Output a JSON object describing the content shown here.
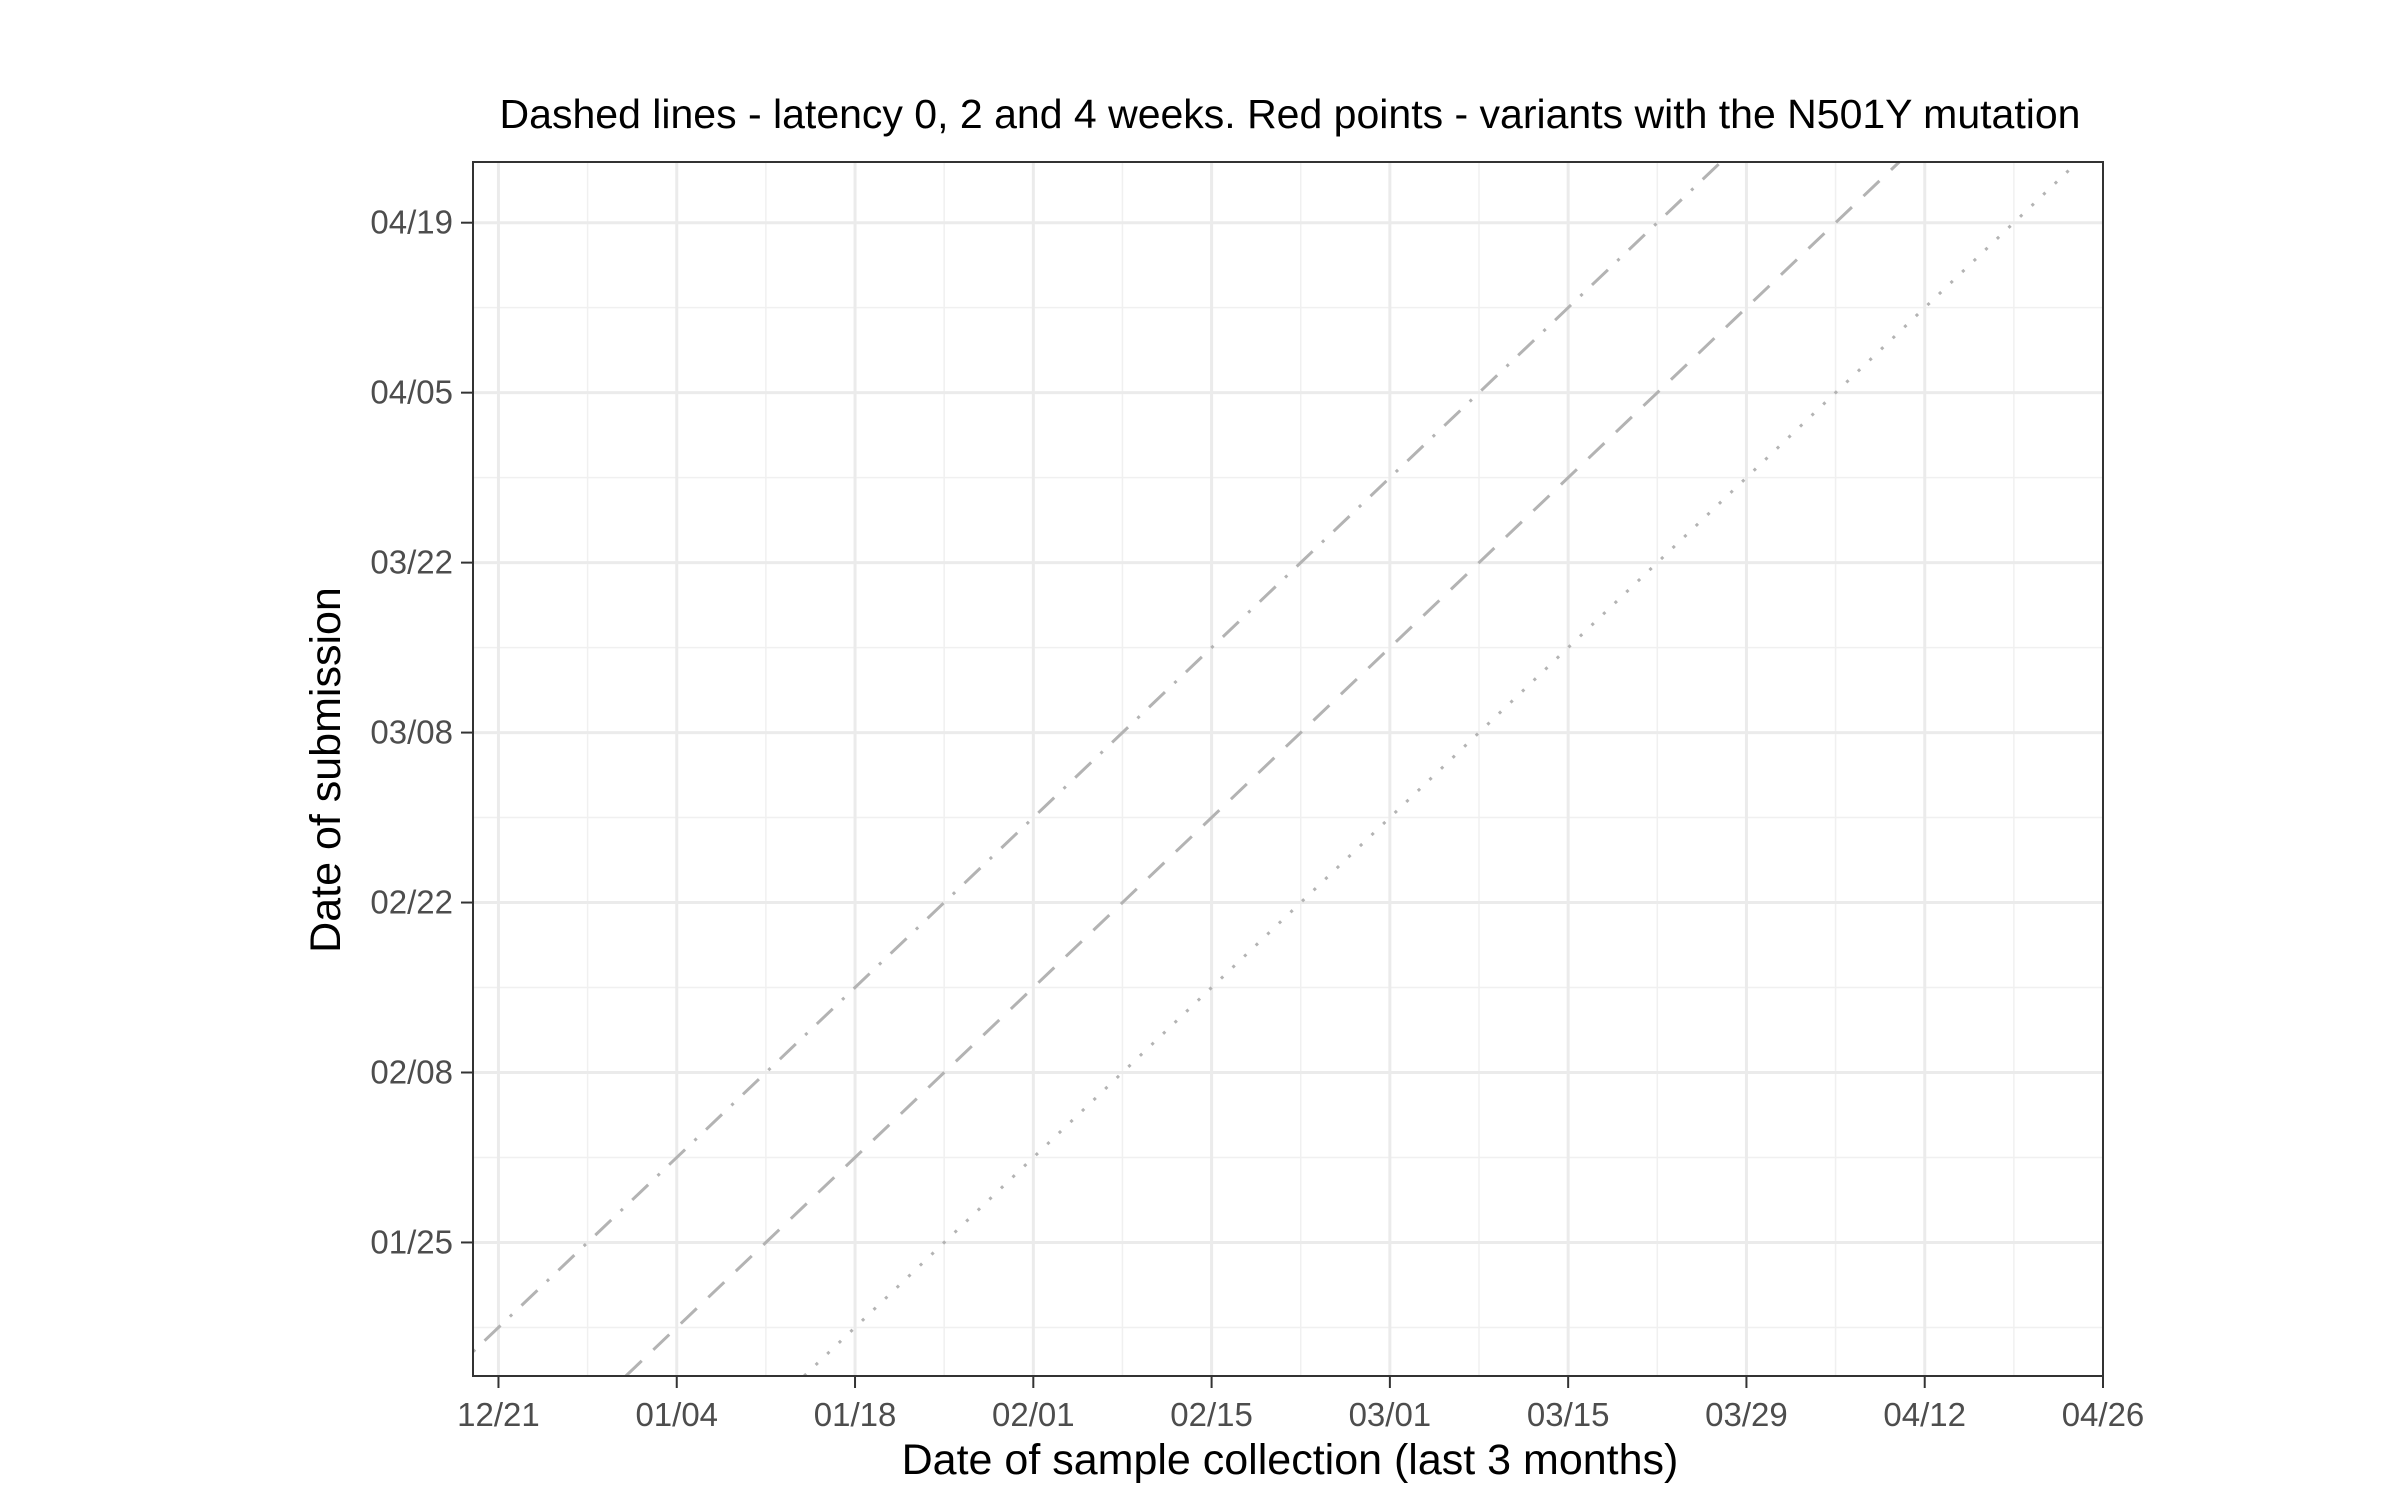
{
  "chart_data": {
    "type": "scatter",
    "title": "Dashed lines - latency 0, 2 and 4 weeks. Red points - variants with the N501Y mutation",
    "xlabel": "Date of sample collection (last 3 months)",
    "ylabel": "Date of submission",
    "x_axis": {
      "type": "date",
      "range": [
        "2020-12-19",
        "2021-04-26"
      ],
      "ticks": [
        "2020-12-21",
        "2021-01-04",
        "2021-01-18",
        "2021-02-01",
        "2021-02-15",
        "2021-03-01",
        "2021-03-15",
        "2021-03-29",
        "2021-04-12",
        "2021-04-26"
      ],
      "tick_labels": [
        "12/21",
        "01/04",
        "01/18",
        "02/01",
        "02/15",
        "03/01",
        "03/15",
        "03/29",
        "04/12",
        "04/26"
      ]
    },
    "y_axis": {
      "type": "date",
      "range": [
        "2021-01-14",
        "2021-04-24"
      ],
      "ticks": [
        "2021-01-25",
        "2021-02-08",
        "2021-02-22",
        "2021-03-08",
        "2021-03-22",
        "2021-04-05",
        "2021-04-19"
      ],
      "tick_labels": [
        "01/25",
        "02/08",
        "02/22",
        "03/08",
        "03/22",
        "04/05",
        "04/19"
      ]
    },
    "reference_lines": [
      {
        "latency_weeks": 0,
        "style": "dotted",
        "color": "#b3b3b3"
      },
      {
        "latency_weeks": 2,
        "style": "dashed",
        "color": "#b3b3b3"
      },
      {
        "latency_weeks": 4,
        "style": "dotdash",
        "color": "#b3b3b3"
      }
    ],
    "series": [
      {
        "color": "#ff0000",
        "points": []
      }
    ],
    "grid": true,
    "theme": "bw"
  }
}
